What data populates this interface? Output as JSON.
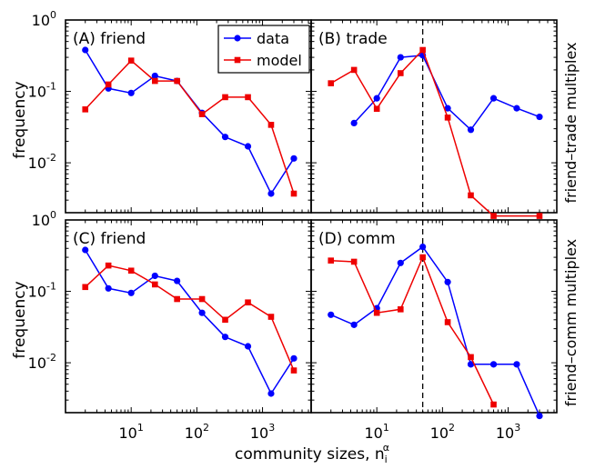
{
  "figure": {
    "xlabel_main": "community sizes, n",
    "xlabel_sup": "α",
    "xlabel_sub": "i",
    "ylabel": "frequency",
    "row_labels": [
      "friend–trade multiplex",
      "friend–comm multiplex"
    ],
    "legend": {
      "data": "data",
      "model": "model"
    },
    "colors": {
      "data": "#0000ff",
      "model": "#ee0000",
      "dashed_line": "#000000"
    },
    "x_tick_labels": [
      {
        "base": "10",
        "exp": "1"
      },
      {
        "base": "10",
        "exp": "2"
      },
      {
        "base": "10",
        "exp": "3"
      }
    ],
    "y_tick_labels": [
      {
        "base": "10",
        "exp": "0"
      },
      {
        "base": "10",
        "exp": "-1"
      },
      {
        "base": "10",
        "exp": "-2"
      }
    ]
  },
  "chart_data": [
    {
      "type": "line",
      "panel": "A",
      "title": "(A) friend",
      "xscale": "log",
      "yscale": "log",
      "xlim": [
        1,
        5500
      ],
      "ylim": [
        0.002,
        1
      ],
      "legend": "top-right",
      "series": [
        {
          "name": "data",
          "x": [
            2,
            4.5,
            10,
            23,
            50,
            120,
            270,
            600,
            1350,
            3000
          ],
          "values": [
            0.38,
            0.11,
            0.095,
            0.165,
            0.14,
            0.05,
            0.023,
            0.017,
            0.0037,
            0.0115
          ]
        },
        {
          "name": "model",
          "x": [
            2,
            4.5,
            10,
            23,
            50,
            120,
            270,
            600,
            1350,
            3000
          ],
          "values": [
            0.056,
            0.125,
            0.27,
            0.14,
            0.14,
            0.048,
            0.083,
            0.083,
            0.034,
            0.0037
          ]
        }
      ]
    },
    {
      "type": "line",
      "panel": "B",
      "title": "(B) trade",
      "xscale": "log",
      "yscale": "log",
      "xlim": [
        1,
        5500
      ],
      "ylim": [
        0.002,
        1
      ],
      "vline": 50,
      "series": [
        {
          "name": "data",
          "x": [
            4.5,
            10,
            23,
            50,
            120,
            270,
            600,
            1350,
            3000
          ],
          "values": [
            0.036,
            0.08,
            0.3,
            0.32,
            0.058,
            0.029,
            0.08,
            0.058,
            0.044
          ]
        },
        {
          "name": "model",
          "x": [
            2,
            4.5,
            10,
            23,
            50,
            120,
            270,
            600,
            3000
          ],
          "values": [
            0.13,
            0.2,
            0.057,
            0.18,
            0.38,
            0.043,
            0.0035,
            0.0018,
            0.0018
          ]
        }
      ]
    },
    {
      "type": "line",
      "panel": "C",
      "title": "(C) friend",
      "xscale": "log",
      "yscale": "log",
      "xlim": [
        1,
        5500
      ],
      "ylim": [
        0.002,
        1
      ],
      "series": [
        {
          "name": "data",
          "x": [
            2,
            4.5,
            10,
            23,
            50,
            120,
            270,
            600,
            1350,
            3000
          ],
          "values": [
            0.38,
            0.11,
            0.095,
            0.165,
            0.14,
            0.05,
            0.023,
            0.017,
            0.0037,
            0.0115
          ]
        },
        {
          "name": "model",
          "x": [
            2,
            4.5,
            10,
            23,
            50,
            120,
            270,
            600,
            1350,
            3000
          ],
          "values": [
            0.115,
            0.23,
            0.195,
            0.125,
            0.078,
            0.078,
            0.04,
            0.07,
            0.044,
            0.0078
          ]
        }
      ]
    },
    {
      "type": "line",
      "panel": "D",
      "title": "(D) comm",
      "xscale": "log",
      "yscale": "log",
      "xlim": [
        1,
        5500
      ],
      "ylim": [
        0.002,
        1
      ],
      "vline": 50,
      "series": [
        {
          "name": "data",
          "x": [
            2,
            4.5,
            10,
            23,
            50,
            120,
            270,
            600,
            1350,
            3000
          ],
          "values": [
            0.047,
            0.034,
            0.058,
            0.25,
            0.42,
            0.135,
            0.0095,
            0.0095,
            0.0095,
            0.0018
          ]
        },
        {
          "name": "model",
          "x": [
            2,
            4.5,
            10,
            23,
            50,
            120,
            270,
            600
          ],
          "values": [
            0.27,
            0.26,
            0.05,
            0.056,
            0.3,
            0.037,
            0.012,
            0.0026
          ]
        }
      ]
    }
  ]
}
